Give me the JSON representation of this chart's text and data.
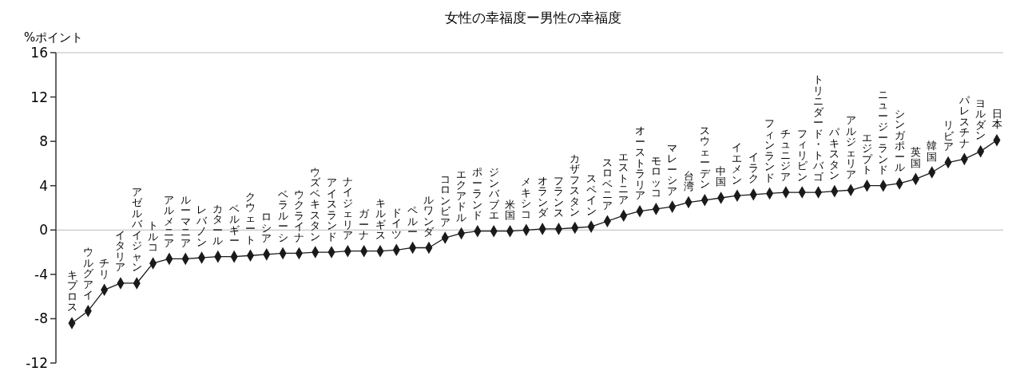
{
  "chart_data": {
    "type": "line",
    "title": "女性の幸福度ー男性の幸福度",
    "ylabel": "%ポイント",
    "categories": [
      "キプロス",
      "ウルグアイ",
      "チリ",
      "イタリア",
      "アゼルバイジャン",
      "トルコ",
      "アルメニア",
      "ルーマニア",
      "レバノン",
      "カタール",
      "ベルギー",
      "クウェート",
      "ロシア",
      "ベラルーシ",
      "ウクライナ",
      "ウズベキスタン",
      "アイスランド",
      "ナイジェリア",
      "ガーナ",
      "キルギス",
      "ドイツ",
      "ペルー",
      "ルワンダ",
      "コロンビア",
      "エクアドル",
      "ポーランド",
      "ジンバブエ",
      "米国",
      "メキシコ",
      "オランダ",
      "フランス",
      "カザフスタン",
      "スペイン",
      "スロベニア",
      "エストニア",
      "オーストラリア",
      "モロッコ",
      "マレーシア",
      "台湾",
      "スウェーデン",
      "中国",
      "イエメン",
      "イラク",
      "フィンランド",
      "チュニジア",
      "フィリピン",
      "トリニダード・トバゴ",
      "パキスタン",
      "アルジェリア",
      "エジプト",
      "ニュージーランド",
      "シンガポール",
      "英国",
      "韓国",
      "リビア",
      "パレスチナ",
      "ヨルダン",
      "日本"
    ],
    "series": [
      {
        "color": "#1a1a1a",
        "values": [
          -8.4,
          -7.3,
          -5.4,
          -4.8,
          -4.8,
          -3.0,
          -2.6,
          -2.6,
          -2.5,
          -2.4,
          -2.4,
          -2.3,
          -2.2,
          -2.1,
          -2.1,
          -2.0,
          -2.0,
          -1.9,
          -1.9,
          -1.9,
          -1.8,
          -1.6,
          -1.6,
          -0.7,
          -0.3,
          -0.1,
          -0.1,
          -0.1,
          0.0,
          0.1,
          0.1,
          0.2,
          0.3,
          0.8,
          1.3,
          1.7,
          1.9,
          2.1,
          2.5,
          2.7,
          2.9,
          3.1,
          3.2,
          3.3,
          3.4,
          3.4,
          3.4,
          3.5,
          3.6,
          4.0,
          4.0,
          4.2,
          4.6,
          5.2,
          6.1,
          6.4,
          7.1,
          8.1
        ]
      }
    ],
    "ylim": [
      -12,
      16
    ],
    "yticks": [
      -12,
      -8,
      -4,
      0,
      4,
      8,
      12,
      16
    ],
    "marker": "diamond",
    "line_style": "solid"
  }
}
